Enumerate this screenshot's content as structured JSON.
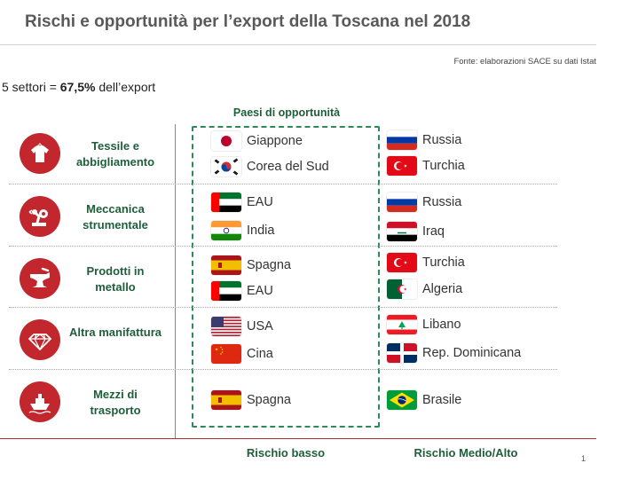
{
  "title": "Rischi e opportunità per l’export della Toscana nel 2018",
  "source": "Fonte: elaborazioni SACE su dati Istat",
  "summary": {
    "prefix": "5 settori = ",
    "value": "67,5%",
    "suffix": " dell’export"
  },
  "opportunity_header": "Paesi di opportunità",
  "footer": {
    "low_risk": "Rischio basso",
    "high_risk": "Rischio Medio/Alto",
    "page": "1"
  },
  "colors": {
    "accent_red": "#c1272d",
    "label_green": "#1f5e3a",
    "box_green": "#2e8b57"
  },
  "sectors": [
    {
      "label": "Tessile e abbigliamento",
      "icon": "tshirt-icon",
      "low": [
        {
          "name": "Giappone",
          "flag": "jp"
        },
        {
          "name": "Corea del Sud",
          "flag": "kr"
        }
      ],
      "high": [
        {
          "name": "Russia",
          "flag": "ru"
        },
        {
          "name": "Turchia",
          "flag": "tr"
        }
      ]
    },
    {
      "label": "Meccanica strumentale",
      "icon": "robot-arm-icon",
      "low": [
        {
          "name": "EAU",
          "flag": "ae"
        },
        {
          "name": "India",
          "flag": "in"
        }
      ],
      "high": [
        {
          "name": "Russia",
          "flag": "ru"
        },
        {
          "name": "Iraq",
          "flag": "iq"
        }
      ]
    },
    {
      "label": "Prodotti in metallo",
      "icon": "anvil-icon",
      "low": [
        {
          "name": "Spagna",
          "flag": "es"
        },
        {
          "name": "EAU",
          "flag": "ae"
        }
      ],
      "high": [
        {
          "name": "Turchia",
          "flag": "tr"
        },
        {
          "name": "Algeria",
          "flag": "dz"
        }
      ]
    },
    {
      "label": "Altra manifattura",
      "icon": "diamond-icon",
      "low": [
        {
          "name": "USA",
          "flag": "us"
        },
        {
          "name": "Cina",
          "flag": "cn"
        }
      ],
      "high": [
        {
          "name": "Libano",
          "flag": "lb"
        },
        {
          "name": "Rep. Dominicana",
          "flag": "do"
        }
      ]
    },
    {
      "label": "Mezzi di trasporto",
      "icon": "ship-icon",
      "low": [
        {
          "name": "Spagna",
          "flag": "es"
        }
      ],
      "high": [
        {
          "name": "Brasile",
          "flag": "br"
        }
      ]
    }
  ]
}
